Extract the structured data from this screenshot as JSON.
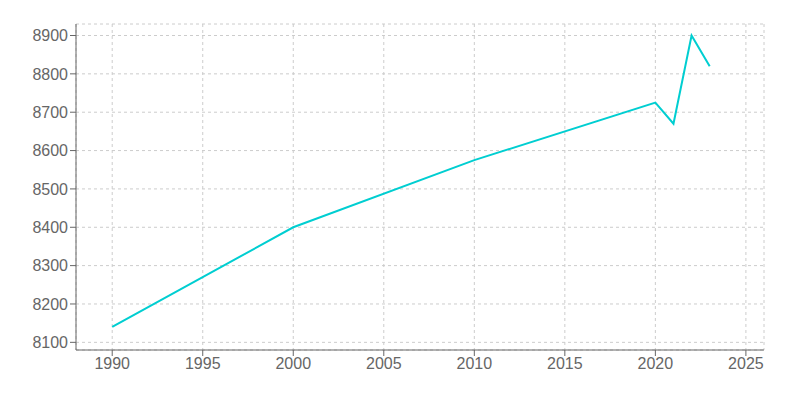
{
  "chart_data": {
    "type": "line",
    "x": [
      1990,
      2000,
      2010,
      2020,
      2021,
      2022,
      2023
    ],
    "values": [
      8140,
      8400,
      8575,
      8725,
      8670,
      8900,
      8820
    ],
    "color": "#00CED1",
    "xlim": [
      1988,
      2026
    ],
    "ylim": [
      8080,
      8930
    ],
    "xticks": [
      1990,
      1995,
      2000,
      2005,
      2010,
      2015,
      2020,
      2025
    ],
    "yticks": [
      8100,
      8200,
      8300,
      8400,
      8500,
      8600,
      8700,
      8800,
      8900
    ],
    "grid": true
  }
}
